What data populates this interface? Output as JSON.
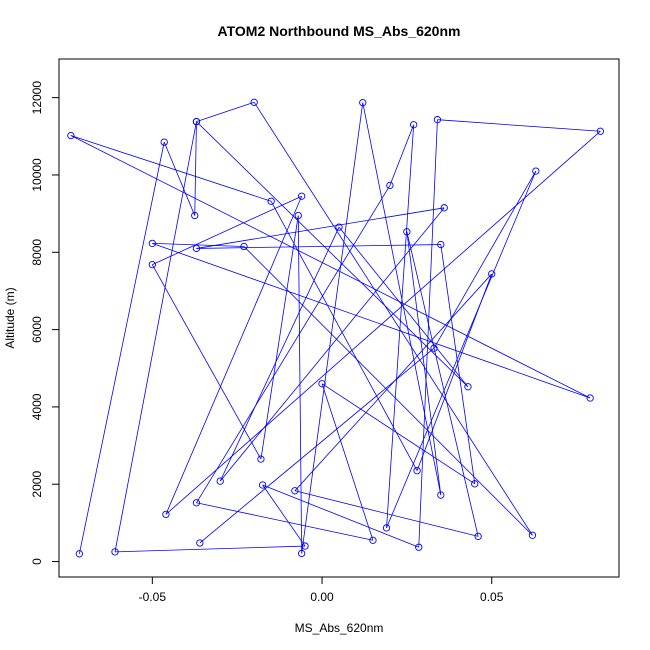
{
  "chart_data": {
    "type": "line",
    "title": "ATOM2 Northbound MS_Abs_620nm",
    "xlabel": "MS_Abs_620nm",
    "ylabel": "Altitude (m)",
    "xlim": [
      -0.0775,
      0.0875
    ],
    "ylim": [
      -400,
      13000
    ],
    "xticks": [
      -0.05,
      0.0,
      0.05
    ],
    "xtick_labels": [
      "-0.05",
      "0.00",
      "0.05"
    ],
    "yticks": [
      0,
      2000,
      4000,
      6000,
      8000,
      10000,
      12000
    ],
    "ytick_labels": [
      "0",
      "2000",
      "4000",
      "6000",
      "8000",
      "10000",
      "12000"
    ],
    "grid": false,
    "series": [
      {
        "color": "#0000ff",
        "marker": "open-circle",
        "points": [
          {
            "x": -0.0715,
            "y": 200
          },
          {
            "x": -0.0465,
            "y": 10850
          },
          {
            "x": -0.0375,
            "y": 8950
          },
          {
            "x": -0.037,
            "y": 11380
          },
          {
            "x": -0.061,
            "y": 250
          },
          {
            "x": -0.005,
            "y": 400
          },
          {
            "x": -0.0175,
            "y": 1980
          },
          {
            "x": 0.0285,
            "y": 370
          },
          {
            "x": 0.034,
            "y": 11430
          },
          {
            "x": 0.082,
            "y": 11130
          },
          {
            "x": -0.046,
            "y": 1220
          },
          {
            "x": -0.006,
            "y": 9450
          },
          {
            "x": -0.05,
            "y": 7680
          },
          {
            "x": -0.018,
            "y": 2650
          },
          {
            "x": -0.007,
            "y": 8950
          },
          {
            "x": -0.006,
            "y": 210
          },
          {
            "x": 0.012,
            "y": 11870
          },
          {
            "x": 0.035,
            "y": 1720
          },
          {
            "x": 0.025,
            "y": 8530
          },
          {
            "x": 0.046,
            "y": 650
          },
          {
            "x": -0.008,
            "y": 1830
          },
          {
            "x": 0.05,
            "y": 7440
          },
          {
            "x": 0.028,
            "y": 2350
          },
          {
            "x": -0.015,
            "y": 9320
          },
          {
            "x": -0.074,
            "y": 11020
          },
          {
            "x": 0.079,
            "y": 4230
          },
          {
            "x": -0.05,
            "y": 8230
          },
          {
            "x": -0.023,
            "y": 8150
          },
          {
            "x": 0.062,
            "y": 680
          },
          {
            "x": -0.02,
            "y": 11880
          },
          {
            "x": -0.037,
            "y": 11380
          },
          {
            "x": 0.043,
            "y": 4520
          },
          {
            "x": 0.005,
            "y": 8650
          },
          {
            "x": -0.03,
            "y": 2080
          },
          {
            "x": 0.036,
            "y": 9150
          },
          {
            "x": -0.037,
            "y": 8100
          },
          {
            "x": 0.035,
            "y": 8200
          },
          {
            "x": 0.045,
            "y": 2010
          },
          {
            "x": 0.0,
            "y": 4600
          },
          {
            "x": 0.015,
            "y": 550
          },
          {
            "x": -0.037,
            "y": 1520
          },
          {
            "x": 0.02,
            "y": 9730
          },
          {
            "x": 0.027,
            "y": 11300
          },
          {
            "x": 0.019,
            "y": 870
          },
          {
            "x": 0.063,
            "y": 10100
          },
          {
            "x": 0.033,
            "y": 5520
          },
          {
            "x": -0.036,
            "y": 480
          }
        ]
      }
    ]
  }
}
